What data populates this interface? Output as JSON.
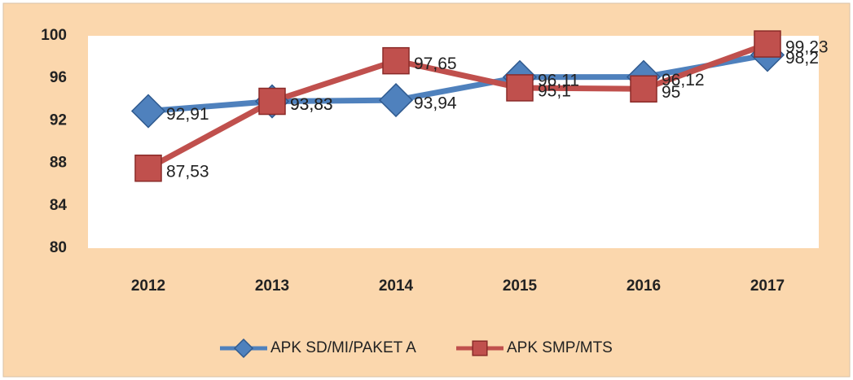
{
  "chart_data": {
    "type": "line",
    "categories": [
      "2012",
      "2013",
      "2014",
      "2015",
      "2016",
      "2017"
    ],
    "series": [
      {
        "name": "APK SD/MI/PAKET A",
        "color": "#4f81bd",
        "marker": "diamond",
        "values": [
          92.91,
          93.83,
          93.94,
          96.11,
          96.12,
          98.2
        ],
        "value_labels": [
          "92,91",
          "93,83",
          "93,94",
          "96,11",
          "96,12",
          "98,2"
        ]
      },
      {
        "name": "APK SMP/MTS",
        "color": "#c0504d",
        "marker": "square",
        "values": [
          87.53,
          93.83,
          97.65,
          95.1,
          95,
          99.23
        ],
        "value_labels": [
          "87,53",
          "93,83",
          "97,65",
          "95,1",
          "95",
          "99,23"
        ]
      }
    ],
    "ylim": [
      80,
      100
    ],
    "yticks": [
      80,
      84,
      88,
      92,
      96,
      100
    ],
    "legend": "bottom"
  }
}
